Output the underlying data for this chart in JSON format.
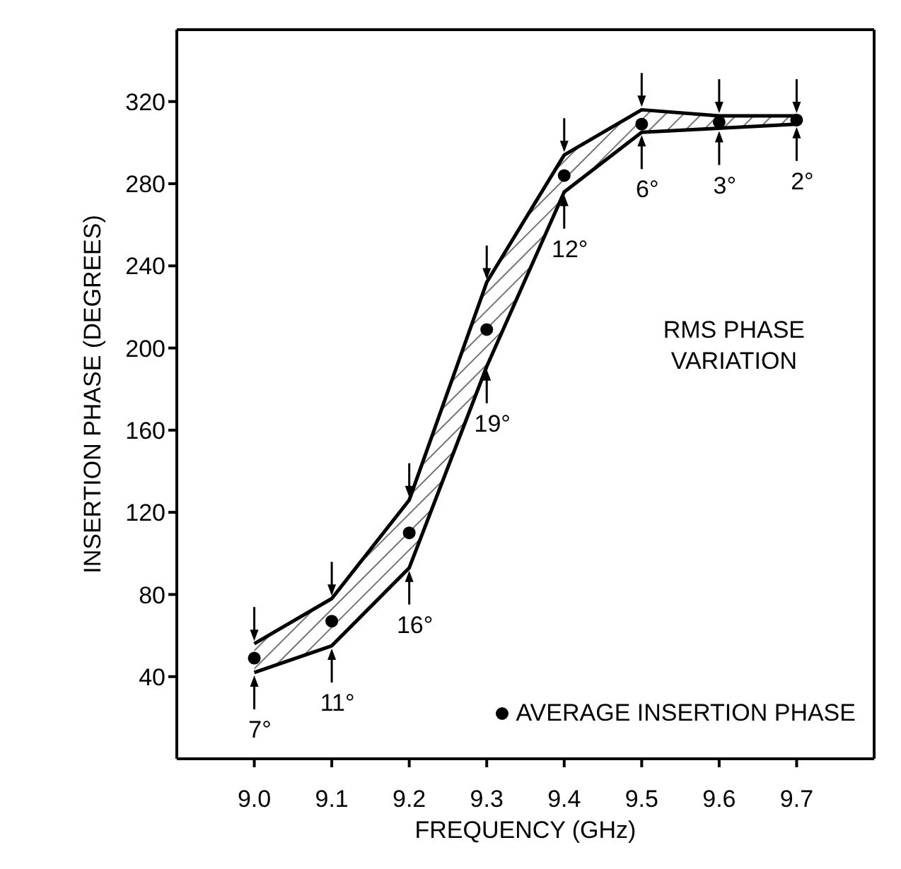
{
  "chart_data": {
    "type": "scatter",
    "xlabel": "FREQUENCY (GHz)",
    "ylabel": "INSERTION PHASE (DEGREES)",
    "x": [
      9.0,
      9.1,
      9.2,
      9.3,
      9.4,
      9.5,
      9.6,
      9.7
    ],
    "series": [
      {
        "name": "AVERAGE INSERTION PHASE",
        "marker": "circle",
        "color": "#000000",
        "values": [
          49,
          67,
          110,
          209,
          284,
          309,
          310,
          311
        ],
        "lower": [
          42,
          55,
          93,
          191,
          276,
          305,
          307,
          309
        ],
        "upper": [
          56,
          78,
          126,
          232,
          294,
          316,
          313,
          313
        ]
      },
      {
        "type": "line",
        "marker": "none",
        "color": "#000000",
        "values": [
          56,
          78,
          126,
          232,
          294,
          316,
          313,
          313
        ]
      },
      {
        "type": "line",
        "marker": "none",
        "color": "#000000",
        "values": [
          42,
          55,
          93,
          191,
          276,
          305,
          307,
          309
        ]
      }
    ],
    "xlim": [
      8.9,
      9.8
    ],
    "xticks": [
      {
        "value": 9.0,
        "label": "9.0"
      },
      {
        "value": 9.1,
        "label": "9.1"
      },
      {
        "value": 9.2,
        "label": "9.2"
      },
      {
        "value": 9.3,
        "label": "9.3"
      },
      {
        "value": 9.4,
        "label": "9.4"
      },
      {
        "value": 9.5,
        "label": "9.5"
      },
      {
        "value": 9.6,
        "label": "9.6"
      },
      {
        "value": 9.7,
        "label": "9.7"
      }
    ],
    "ylim": [
      0,
      355
    ],
    "yticks": [
      40,
      80,
      120,
      160,
      200,
      240,
      280,
      320
    ],
    "grid": false,
    "legend": "bottom right",
    "annotations": [
      "RMS PHASE VARIATION",
      {
        "text": "7°",
        "x": 9.0,
        "y": 42
      },
      {
        "text": "11°",
        "x": 9.1,
        "y": 55
      },
      {
        "text": "16°",
        "x": 9.2,
        "y": 93
      },
      {
        "text": "19°",
        "x": 9.3,
        "y": 191
      },
      {
        "text": "12°",
        "x": 9.4,
        "y": 276
      },
      {
        "text": "6°",
        "x": 9.5,
        "y": 305
      },
      {
        "text": "3°",
        "x": 9.6,
        "y": 307
      },
      {
        "text": "2°",
        "x": 9.7,
        "y": 309
      }
    ]
  }
}
